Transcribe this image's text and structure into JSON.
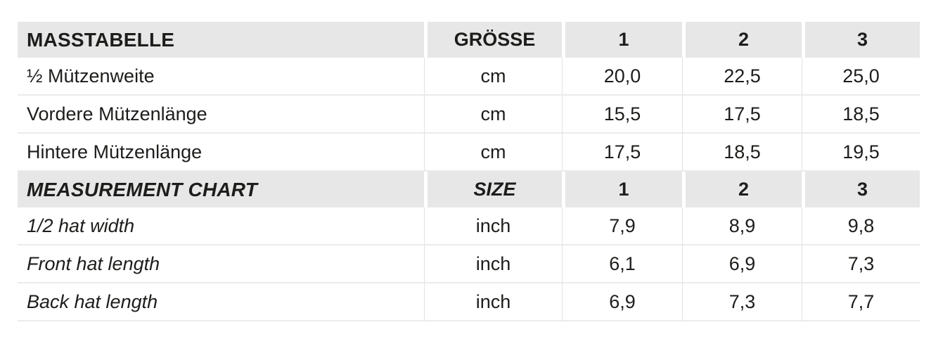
{
  "colors": {
    "header_band": "#e7e7e7",
    "separator_line": "#ebebeb",
    "column_line": "#e2e2e2",
    "text": "#1d1d1b",
    "background": "#ffffff"
  },
  "table": {
    "sections": [
      {
        "header": {
          "title": "MASSTABELLE",
          "unit_label": "GRÖSSE",
          "sizes": [
            "1",
            "2",
            "3"
          ]
        },
        "rows": [
          {
            "label": "½ Mützenweite",
            "unit": "cm",
            "values": [
              "20,0",
              "22,5",
              "25,0"
            ]
          },
          {
            "label": "Vordere Mützenlänge",
            "unit": "cm",
            "values": [
              "15,5",
              "17,5",
              "18,5"
            ]
          },
          {
            "label": "Hintere Mützenlänge",
            "unit": "cm",
            "values": [
              "17,5",
              "18,5",
              "19,5"
            ]
          }
        ]
      },
      {
        "header": {
          "title": "MEASUREMENT CHART",
          "unit_label": "SIZE",
          "sizes": [
            "1",
            "2",
            "3"
          ]
        },
        "rows": [
          {
            "label": "1/2 hat width",
            "unit": "inch",
            "values": [
              "7,9",
              "8,9",
              "9,8"
            ]
          },
          {
            "label": "Front hat length",
            "unit": "inch",
            "values": [
              "6,1",
              "6,9",
              "7,3"
            ]
          },
          {
            "label": "Back hat length",
            "unit": "inch",
            "values": [
              "6,9",
              "7,3",
              "7,7"
            ]
          }
        ]
      }
    ]
  },
  "chart_data": {
    "type": "table",
    "title": "MASSTABELLE / MEASUREMENT CHART",
    "columns": [
      "",
      "GRÖSSE / SIZE",
      "1",
      "2",
      "3"
    ],
    "rows_cm": [
      [
        "½ Mützenweite",
        "cm",
        20.0,
        22.5,
        25.0
      ],
      [
        "Vordere Mützenlänge",
        "cm",
        15.5,
        17.5,
        18.5
      ],
      [
        "Hintere Mützenlänge",
        "cm",
        17.5,
        18.5,
        19.5
      ]
    ],
    "rows_inch": [
      [
        "1/2 hat width",
        "inch",
        7.9,
        8.9,
        9.8
      ],
      [
        "Front hat length",
        "inch",
        6.1,
        6.9,
        7.3
      ],
      [
        "Back hat length",
        "inch",
        6.9,
        7.3,
        7.7
      ]
    ]
  }
}
